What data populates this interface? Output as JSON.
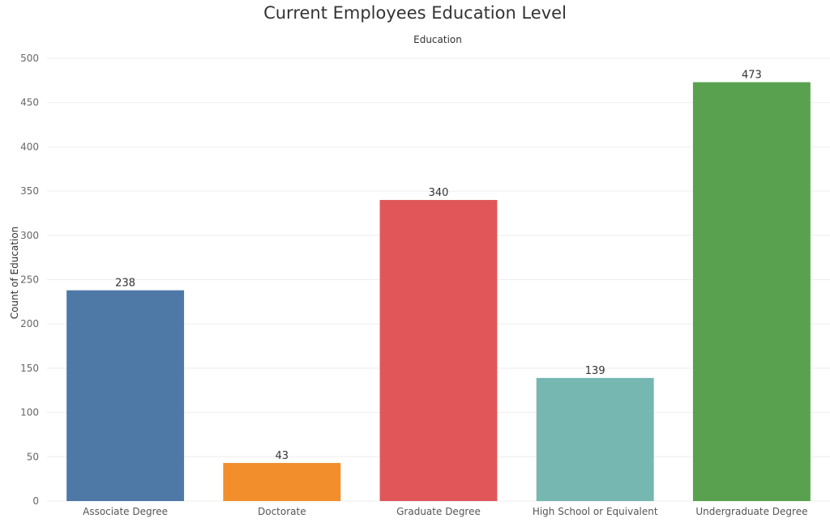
{
  "chart_data": {
    "type": "bar",
    "title": "Current Employees Education Level",
    "header_label": "Education",
    "ylabel": "Count of Education",
    "categories": [
      "Associate Degree",
      "Doctorate",
      "Graduate Degree",
      "High School or Equivalent",
      "Undergraduate Degree"
    ],
    "values": [
      238,
      43,
      340,
      139,
      473
    ],
    "data_labels": [
      "238",
      "43",
      "340",
      "139",
      "473"
    ],
    "colors": [
      "#4e79a7",
      "#f28e2b",
      "#e15759",
      "#76b7b2",
      "#59a14f"
    ],
    "ylim": [
      0,
      500
    ],
    "yticks": [
      0,
      50,
      100,
      150,
      200,
      250,
      300,
      350,
      400,
      450,
      500
    ],
    "ytick_labels": [
      "0",
      "50",
      "100",
      "150",
      "200",
      "250",
      "300",
      "350",
      "400",
      "450",
      "500"
    ],
    "grid": true,
    "legend": "none"
  }
}
